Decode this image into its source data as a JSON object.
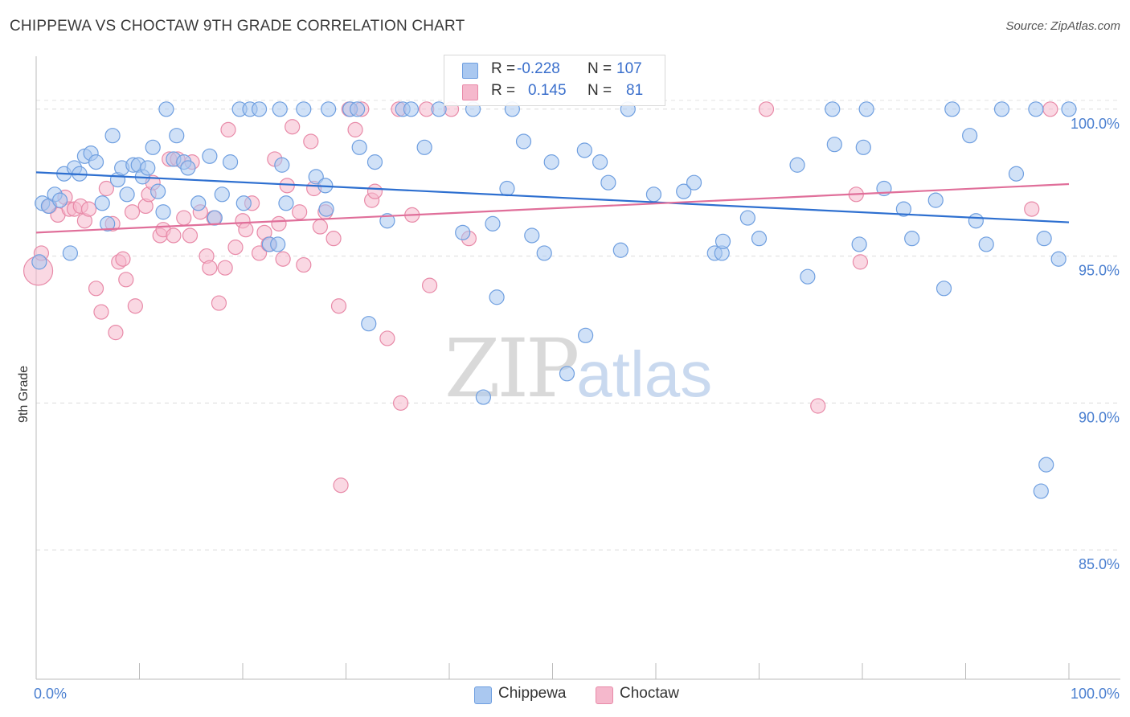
{
  "title": "CHIPPEWA VS CHOCTAW 9TH GRADE CORRELATION CHART",
  "source": "Source: ZipAtlas.com",
  "watermark": {
    "zip": "ZIP",
    "atlas": "atlas"
  },
  "legend_top": {
    "rows": [
      {
        "r_label": "R =",
        "r_value": "-0.228",
        "n_label": "N =",
        "n_value": "107"
      },
      {
        "r_label": "R =",
        "r_value": "0.145",
        "n_label": "N =",
        "n_value": "81"
      }
    ]
  },
  "colors": {
    "chippewa_fill": "#aac8f0",
    "chippewa_stroke": "#6f9fe0",
    "chippewa_line": "#2d6fd0",
    "choctaw_fill": "#f5b8cc",
    "choctaw_stroke": "#e88aa8",
    "choctaw_line": "#e06f9a",
    "tick_text": "#4a7fd0"
  },
  "chart_data": {
    "type": "scatter",
    "title": "CHIPPEWA VS CHOCTAW 9TH GRADE CORRELATION CHART",
    "xlabel": "",
    "ylabel": "9th Grade",
    "xlim": [
      0,
      100
    ],
    "ylim": [
      80.6,
      101.8
    ],
    "x_tick_labels": [
      "0.0%",
      "100.0%"
    ],
    "y_ticks": [
      85,
      90,
      95,
      100
    ],
    "y_tick_labels": [
      "85.0%",
      "90.0%",
      "95.0%",
      "100.0%"
    ],
    "legend": [
      "Chippewa",
      "Choctaw"
    ],
    "series": [
      {
        "name": "Chippewa",
        "r": -0.228,
        "n": 107,
        "trend": {
          "x": [
            0,
            100
          ],
          "y": [
            97.85,
            96.15
          ]
        },
        "points": [
          [
            0.3,
            94.8
          ],
          [
            0.6,
            96.8
          ],
          [
            1.2,
            96.7
          ],
          [
            1.8,
            97.1
          ],
          [
            2.3,
            96.9
          ],
          [
            2.7,
            97.8
          ],
          [
            3.3,
            95.1
          ],
          [
            3.7,
            98.0
          ],
          [
            4.2,
            97.8
          ],
          [
            4.7,
            98.4
          ],
          [
            5.3,
            98.5
          ],
          [
            5.8,
            98.2
          ],
          [
            6.4,
            96.8
          ],
          [
            6.9,
            96.1
          ],
          [
            7.4,
            99.1
          ],
          [
            7.9,
            97.6
          ],
          [
            8.3,
            98.0
          ],
          [
            8.8,
            97.1
          ],
          [
            9.4,
            98.1
          ],
          [
            9.9,
            98.1
          ],
          [
            10.3,
            97.7
          ],
          [
            10.8,
            98.0
          ],
          [
            11.3,
            98.7
          ],
          [
            11.8,
            97.2
          ],
          [
            12.3,
            96.5
          ],
          [
            12.6,
            100.0
          ],
          [
            13.3,
            98.3
          ],
          [
            13.6,
            99.1
          ],
          [
            14.3,
            98.2
          ],
          [
            14.7,
            98.0
          ],
          [
            15.7,
            96.8
          ],
          [
            16.8,
            98.4
          ],
          [
            17.3,
            96.3
          ],
          [
            18.0,
            97.1
          ],
          [
            18.8,
            98.2
          ],
          [
            19.7,
            100.0
          ],
          [
            20.1,
            96.8
          ],
          [
            20.7,
            100.0
          ],
          [
            21.6,
            100.0
          ],
          [
            22.6,
            95.4
          ],
          [
            23.4,
            95.4
          ],
          [
            23.6,
            100.0
          ],
          [
            23.8,
            98.1
          ],
          [
            24.2,
            96.8
          ],
          [
            25.9,
            100.0
          ],
          [
            27.1,
            97.7
          ],
          [
            28.0,
            97.4
          ],
          [
            28.1,
            96.6
          ],
          [
            28.3,
            100.0
          ],
          [
            30.4,
            100.0
          ],
          [
            31.1,
            100.0
          ],
          [
            31.3,
            98.7
          ],
          [
            32.2,
            92.7
          ],
          [
            32.8,
            98.2
          ],
          [
            34.0,
            96.2
          ],
          [
            35.5,
            100.0
          ],
          [
            36.3,
            100.0
          ],
          [
            37.6,
            98.7
          ],
          [
            39.0,
            100.0
          ],
          [
            41.3,
            95.8
          ],
          [
            42.3,
            100.0
          ],
          [
            43.3,
            90.2
          ],
          [
            44.2,
            96.1
          ],
          [
            44.6,
            93.6
          ],
          [
            45.6,
            97.3
          ],
          [
            46.1,
            100.0
          ],
          [
            47.2,
            98.9
          ],
          [
            48.0,
            95.7
          ],
          [
            49.2,
            95.1
          ],
          [
            49.9,
            98.2
          ],
          [
            51.4,
            91.0
          ],
          [
            53.1,
            98.6
          ],
          [
            53.2,
            92.3
          ],
          [
            54.6,
            98.2
          ],
          [
            55.4,
            97.5
          ],
          [
            56.6,
            95.2
          ],
          [
            57.3,
            100.0
          ],
          [
            59.8,
            97.1
          ],
          [
            62.7,
            97.2
          ],
          [
            63.7,
            97.5
          ],
          [
            65.7,
            95.1
          ],
          [
            66.4,
            95.1
          ],
          [
            66.5,
            95.5
          ],
          [
            68.9,
            96.3
          ],
          [
            70.0,
            95.6
          ],
          [
            73.7,
            98.1
          ],
          [
            74.7,
            94.3
          ],
          [
            77.1,
            100.0
          ],
          [
            77.3,
            98.8
          ],
          [
            79.7,
            95.4
          ],
          [
            80.1,
            98.7
          ],
          [
            80.4,
            100.0
          ],
          [
            82.1,
            97.3
          ],
          [
            84.0,
            96.6
          ],
          [
            84.8,
            95.6
          ],
          [
            87.1,
            96.9
          ],
          [
            87.9,
            93.9
          ],
          [
            88.7,
            100.0
          ],
          [
            90.4,
            99.1
          ],
          [
            91.0,
            96.2
          ],
          [
            92.0,
            95.4
          ],
          [
            93.5,
            100.0
          ],
          [
            94.9,
            97.8
          ],
          [
            96.8,
            100.0
          ],
          [
            97.6,
            95.6
          ],
          [
            97.3,
            87.0
          ],
          [
            97.8,
            87.9
          ],
          [
            99.0,
            94.9
          ],
          [
            100.0,
            100.0
          ]
        ]
      },
      {
        "name": "Choctaw",
        "r": 0.145,
        "n": 81,
        "trend": {
          "x": [
            0,
            100
          ],
          "y": [
            95.8,
            97.45
          ]
        },
        "points": [
          [
            0.2,
            94.5
          ],
          [
            0.5,
            95.1
          ],
          [
            1.3,
            96.7
          ],
          [
            2.1,
            96.4
          ],
          [
            2.8,
            97.0
          ],
          [
            3.2,
            96.6
          ],
          [
            3.7,
            96.6
          ],
          [
            4.3,
            96.7
          ],
          [
            4.7,
            96.2
          ],
          [
            5.1,
            96.6
          ],
          [
            5.8,
            93.9
          ],
          [
            6.3,
            93.1
          ],
          [
            6.8,
            97.3
          ],
          [
            7.4,
            96.1
          ],
          [
            7.7,
            92.4
          ],
          [
            8.0,
            94.8
          ],
          [
            8.4,
            94.9
          ],
          [
            8.7,
            94.2
          ],
          [
            9.3,
            96.5
          ],
          [
            9.6,
            93.3
          ],
          [
            10.6,
            96.7
          ],
          [
            10.9,
            97.1
          ],
          [
            11.3,
            97.5
          ],
          [
            12.0,
            95.7
          ],
          [
            12.3,
            95.9
          ],
          [
            12.9,
            98.3
          ],
          [
            13.3,
            95.7
          ],
          [
            13.7,
            98.3
          ],
          [
            14.3,
            96.3
          ],
          [
            14.9,
            95.7
          ],
          [
            15.1,
            98.2
          ],
          [
            15.9,
            96.5
          ],
          [
            16.5,
            95.0
          ],
          [
            16.8,
            94.6
          ],
          [
            17.2,
            96.3
          ],
          [
            17.7,
            93.4
          ],
          [
            18.3,
            94.6
          ],
          [
            18.6,
            99.3
          ],
          [
            19.3,
            95.3
          ],
          [
            20.0,
            96.2
          ],
          [
            20.3,
            95.9
          ],
          [
            20.9,
            96.8
          ],
          [
            21.6,
            95.1
          ],
          [
            22.1,
            95.8
          ],
          [
            22.5,
            95.4
          ],
          [
            23.1,
            98.3
          ],
          [
            23.5,
            96.1
          ],
          [
            23.9,
            94.9
          ],
          [
            24.3,
            97.4
          ],
          [
            24.8,
            99.4
          ],
          [
            25.5,
            96.5
          ],
          [
            25.9,
            94.7
          ],
          [
            26.6,
            98.9
          ],
          [
            26.9,
            97.3
          ],
          [
            27.5,
            96.0
          ],
          [
            28.0,
            96.5
          ],
          [
            28.8,
            95.6
          ],
          [
            29.3,
            93.3
          ],
          [
            29.5,
            87.2
          ],
          [
            30.3,
            100.0
          ],
          [
            30.9,
            99.3
          ],
          [
            31.5,
            100.0
          ],
          [
            32.5,
            96.9
          ],
          [
            32.8,
            97.2
          ],
          [
            34.0,
            92.2
          ],
          [
            35.1,
            100.0
          ],
          [
            35.3,
            90.0
          ],
          [
            36.4,
            96.4
          ],
          [
            37.8,
            100.0
          ],
          [
            38.1,
            94.0
          ],
          [
            40.2,
            100.0
          ],
          [
            41.9,
            95.6
          ],
          [
            70.7,
            100.0
          ],
          [
            75.7,
            89.9
          ],
          [
            79.4,
            97.1
          ],
          [
            79.8,
            94.8
          ],
          [
            96.4,
            96.6
          ],
          [
            98.2,
            100.0
          ]
        ]
      }
    ]
  },
  "bottom_legend": [
    {
      "label": "Chippewa"
    },
    {
      "label": "Choctaw"
    }
  ]
}
